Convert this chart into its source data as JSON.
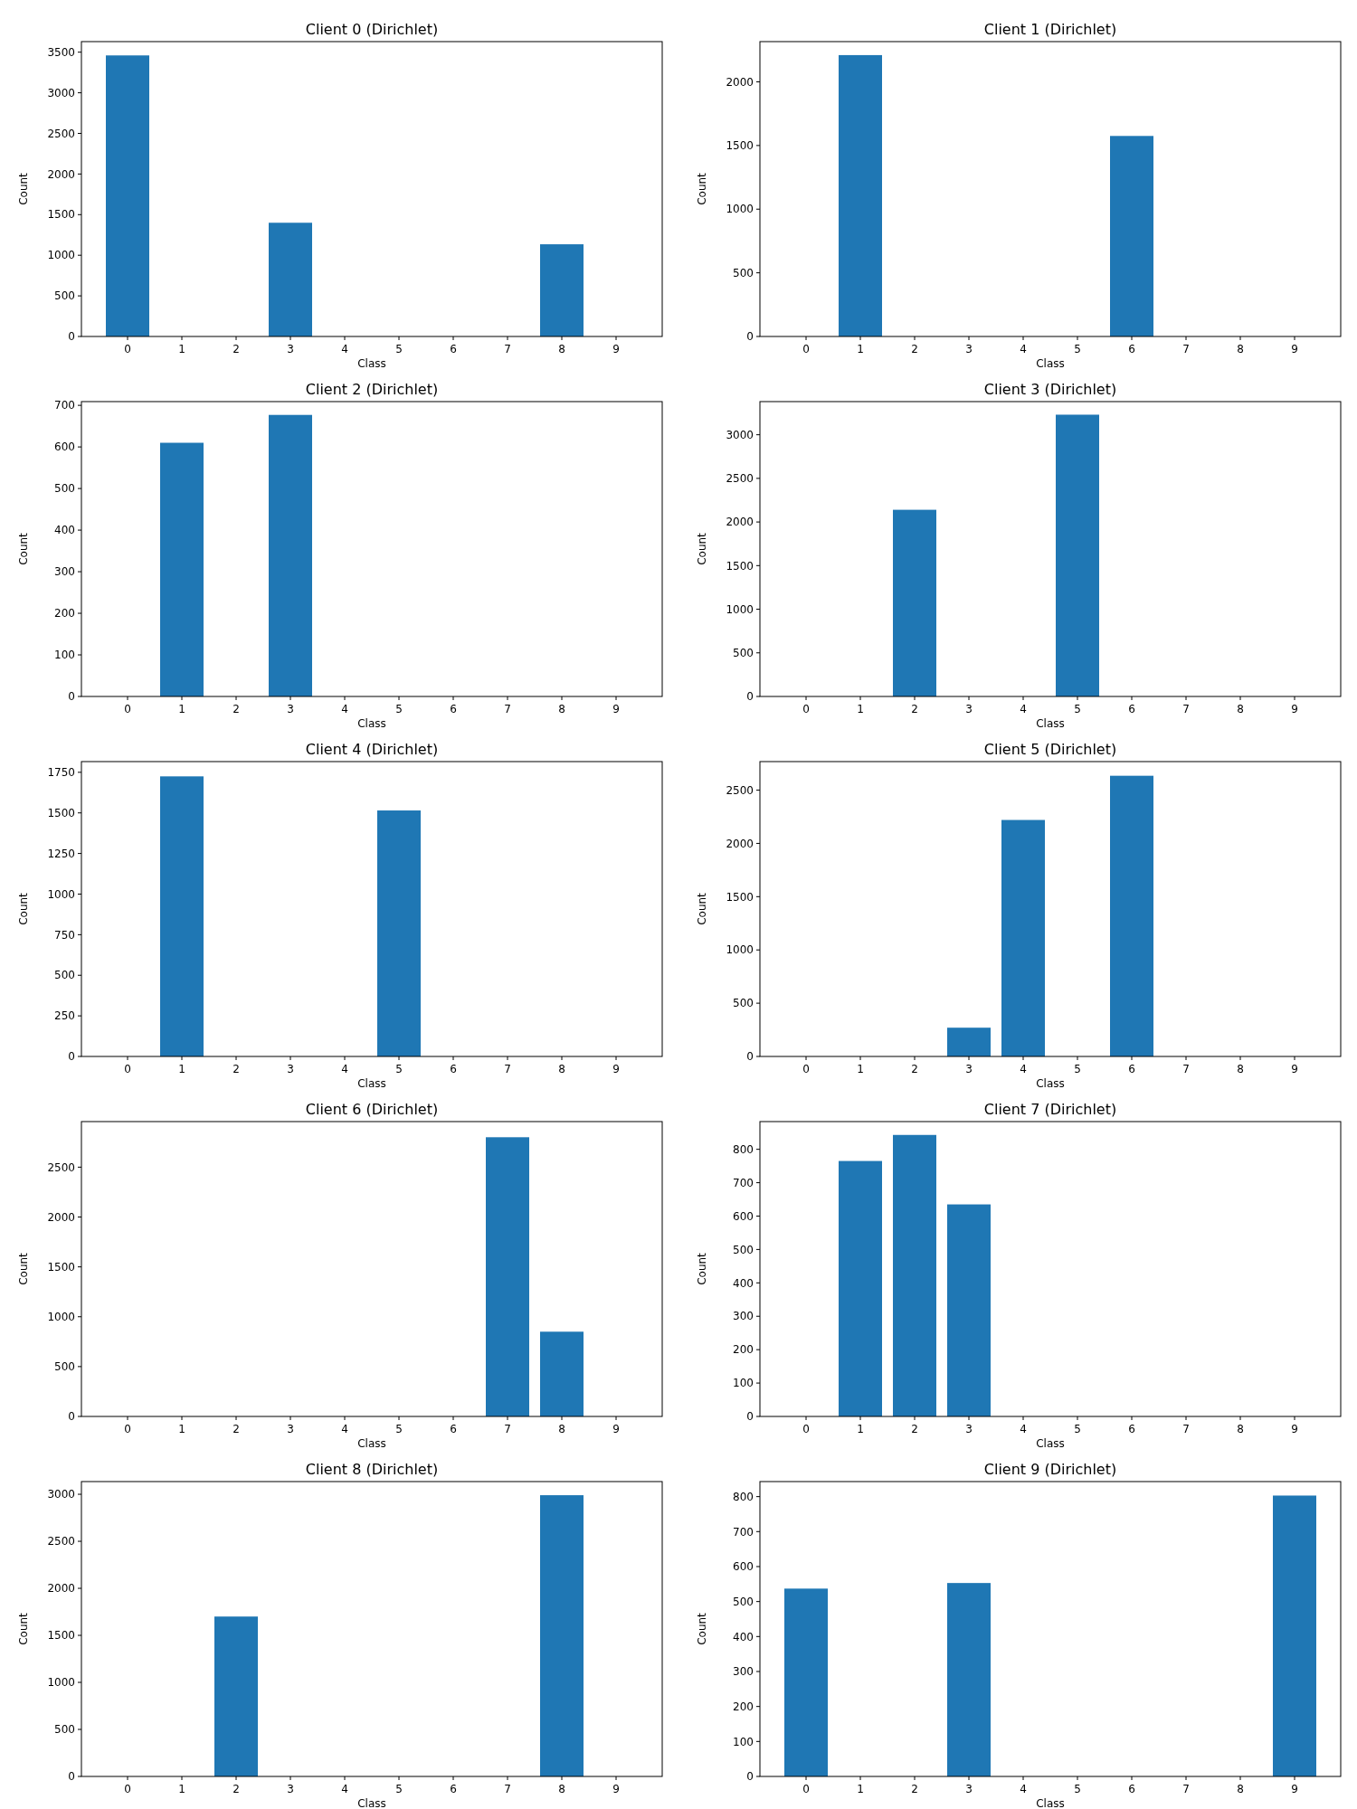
{
  "chart_data": [
    {
      "type": "bar",
      "title": "Client 0 (Dirichlet)",
      "xlabel": "Class",
      "ylabel": "Count",
      "categories": [
        "0",
        "1",
        "2",
        "3",
        "4",
        "5",
        "6",
        "7",
        "8",
        "9"
      ],
      "values": [
        3460,
        0,
        0,
        1400,
        0,
        0,
        0,
        0,
        1135,
        0
      ],
      "color": "#1f77b4",
      "ylim": [
        0,
        3630
      ],
      "yticks": [
        0,
        500,
        1000,
        1500,
        2000,
        2500,
        3000,
        3500
      ],
      "grid": false
    },
    {
      "type": "bar",
      "title": "Client 1 (Dirichlet)",
      "xlabel": "Class",
      "ylabel": "Count",
      "categories": [
        "0",
        "1",
        "2",
        "3",
        "4",
        "5",
        "6",
        "7",
        "8",
        "9"
      ],
      "values": [
        0,
        2210,
        0,
        0,
        0,
        0,
        1575,
        0,
        0,
        0
      ],
      "color": "#1f77b4",
      "ylim": [
        0,
        2316
      ],
      "yticks": [
        0,
        500,
        1000,
        1500,
        2000
      ],
      "grid": false
    },
    {
      "type": "bar",
      "title": "Client 2 (Dirichlet)",
      "xlabel": "Class",
      "ylabel": "Count",
      "categories": [
        "0",
        "1",
        "2",
        "3",
        "4",
        "5",
        "6",
        "7",
        "8",
        "9"
      ],
      "values": [
        0,
        610,
        0,
        677,
        0,
        0,
        0,
        0,
        0,
        0
      ],
      "color": "#1f77b4",
      "ylim": [
        0,
        709
      ],
      "yticks": [
        0,
        100,
        200,
        300,
        400,
        500,
        600,
        700
      ],
      "grid": false
    },
    {
      "type": "bar",
      "title": "Client 3 (Dirichlet)",
      "xlabel": "Class",
      "ylabel": "Count",
      "categories": [
        "0",
        "1",
        "2",
        "3",
        "4",
        "5",
        "6",
        "7",
        "8",
        "9"
      ],
      "values": [
        0,
        0,
        2140,
        0,
        0,
        3230,
        0,
        0,
        0,
        0
      ],
      "color": "#1f77b4",
      "ylim": [
        0,
        3380
      ],
      "yticks": [
        0,
        500,
        1000,
        1500,
        2000,
        2500,
        3000
      ],
      "grid": false
    },
    {
      "type": "bar",
      "title": "Client 4 (Dirichlet)",
      "xlabel": "Class",
      "ylabel": "Count",
      "categories": [
        "0",
        "1",
        "2",
        "3",
        "4",
        "5",
        "6",
        "7",
        "8",
        "9"
      ],
      "values": [
        0,
        1725,
        0,
        0,
        0,
        1515,
        0,
        0,
        0,
        0
      ],
      "color": "#1f77b4",
      "ylim": [
        0,
        1816
      ],
      "yticks": [
        0,
        250,
        500,
        750,
        1000,
        1250,
        1500,
        1750
      ],
      "grid": false
    },
    {
      "type": "bar",
      "title": "Client 5 (Dirichlet)",
      "xlabel": "Class",
      "ylabel": "Count",
      "categories": [
        "0",
        "1",
        "2",
        "3",
        "4",
        "5",
        "6",
        "7",
        "8",
        "9"
      ],
      "values": [
        0,
        0,
        0,
        270,
        2220,
        0,
        2635,
        0,
        0,
        0
      ],
      "color": "#1f77b4",
      "ylim": [
        0,
        2768
      ],
      "yticks": [
        0,
        500,
        1000,
        1500,
        2000,
        2500
      ],
      "grid": false
    },
    {
      "type": "bar",
      "title": "Client 6 (Dirichlet)",
      "xlabel": "Class",
      "ylabel": "Count",
      "categories": [
        "0",
        "1",
        "2",
        "3",
        "4",
        "5",
        "6",
        "7",
        "8",
        "9"
      ],
      "values": [
        0,
        0,
        0,
        0,
        0,
        0,
        0,
        2800,
        850,
        0
      ],
      "color": "#1f77b4",
      "ylim": [
        0,
        2957
      ],
      "yticks": [
        0,
        500,
        1000,
        1500,
        2000,
        2500
      ],
      "grid": false
    },
    {
      "type": "bar",
      "title": "Client 7 (Dirichlet)",
      "xlabel": "Class",
      "ylabel": "Count",
      "categories": [
        "0",
        "1",
        "2",
        "3",
        "4",
        "5",
        "6",
        "7",
        "8",
        "9"
      ],
      "values": [
        0,
        765,
        843,
        635,
        0,
        0,
        0,
        0,
        0,
        0
      ],
      "color": "#1f77b4",
      "ylim": [
        0,
        883
      ],
      "yticks": [
        0,
        100,
        200,
        300,
        400,
        500,
        600,
        700,
        800
      ],
      "grid": false
    },
    {
      "type": "bar",
      "title": "Client 8 (Dirichlet)",
      "xlabel": "Class",
      "ylabel": "Count",
      "categories": [
        "0",
        "1",
        "2",
        "3",
        "4",
        "5",
        "6",
        "7",
        "8",
        "9"
      ],
      "values": [
        0,
        0,
        1700,
        0,
        0,
        0,
        0,
        0,
        2990,
        0
      ],
      "color": "#1f77b4",
      "ylim": [
        0,
        3135
      ],
      "yticks": [
        0,
        500,
        1000,
        1500,
        2000,
        2500,
        3000
      ],
      "grid": false
    },
    {
      "type": "bar",
      "title": "Client 9 (Dirichlet)",
      "xlabel": "Class",
      "ylabel": "Count",
      "categories": [
        "0",
        "1",
        "2",
        "3",
        "4",
        "5",
        "6",
        "7",
        "8",
        "9"
      ],
      "values": [
        537,
        0,
        0,
        553,
        0,
        0,
        0,
        0,
        0,
        803
      ],
      "color": "#1f77b4",
      "ylim": [
        0,
        843
      ],
      "yticks": [
        0,
        100,
        200,
        300,
        400,
        500,
        600,
        700,
        800
      ],
      "grid": false
    }
  ]
}
